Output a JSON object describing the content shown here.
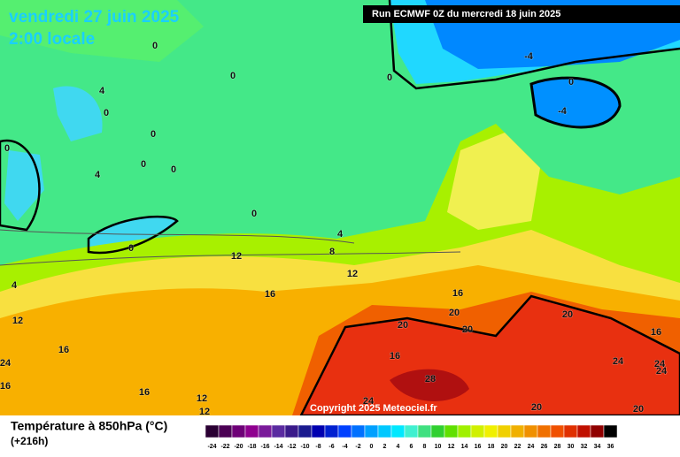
{
  "header": {
    "title": "vendredi 27 juin 2025",
    "subtitle": "2:00 locale",
    "run": "Run ECMWF 0Z du mercredi 18 juin 2025",
    "copyright": "Copyright 2025 Meteociel.fr"
  },
  "legend": {
    "title": "Température à 850hPa (°C)",
    "lead": "(+216h)",
    "ticks": [
      -24,
      -22,
      -20,
      -18,
      -16,
      -14,
      -12,
      -10,
      -8,
      -6,
      -4,
      -2,
      0,
      2,
      4,
      6,
      8,
      10,
      12,
      14,
      16,
      18,
      20,
      22,
      24,
      26,
      28,
      30,
      32,
      34,
      36
    ],
    "colors": [
      "#2a0033",
      "#4b0054",
      "#6e0077",
      "#8f008f",
      "#7a1a9a",
      "#5a2aa0",
      "#3a1a8a",
      "#1a1a8f",
      "#0000b0",
      "#0020d0",
      "#0040ff",
      "#0070ff",
      "#00a0ff",
      "#00c8ff",
      "#00e8ff",
      "#40f0d0",
      "#40e080",
      "#30d030",
      "#60e000",
      "#a0f000",
      "#d0f000",
      "#f0f000",
      "#f0d000",
      "#f0b000",
      "#f09000",
      "#f07000",
      "#f05000",
      "#e03000",
      "#c01000",
      "#900000",
      "#000000"
    ]
  },
  "contour_labels": [
    0,
    0,
    0,
    -4,
    0,
    -4,
    4,
    0,
    0,
    0,
    0,
    4,
    0,
    0,
    4,
    0,
    8,
    12,
    12,
    4,
    16,
    16,
    12,
    20,
    20,
    20,
    20,
    16,
    16,
    24,
    16,
    24,
    24,
    24,
    28,
    16,
    16,
    12,
    12,
    24,
    20,
    20
  ]
}
